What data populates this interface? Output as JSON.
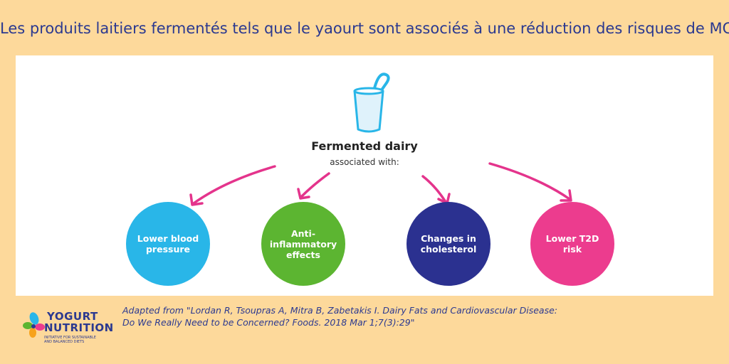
{
  "title": "Les produits laitiers fermentés tels que le yaourt sont associés à une réduction des risques de MCV",
  "diagram": {
    "center": {
      "title": "Fermented dairy",
      "subtitle": "associated with:"
    },
    "effects": [
      {
        "label": "Lower blood pressure",
        "color": "#29b6e8"
      },
      {
        "label": "Anti-inflammatory effects",
        "color": "#5cb531"
      },
      {
        "label": "Changes in cholesterol",
        "color": "#2b3190"
      },
      {
        "label": "Lower T2D risk",
        "color": "#ec3c8e"
      }
    ],
    "arrow_color": "#e4348c",
    "cup_color": "#29b6e8"
  },
  "logo": {
    "name_top": "YOGURT",
    "name_bottom": "NUTRITION",
    "tagline_1": "INITIATIVE FOR SUSTAINABLE",
    "tagline_2": "AND BALANCED DIETS"
  },
  "citation": {
    "line1": "Adapted from \"Lordan R, Tsoupras A, Mitra B, Zabetakis I. Dairy Fats and Cardiovascular Disease:",
    "line2": "Do We Really Need to be Concerned? Foods. 2018 Mar 1;7(3):29\""
  }
}
